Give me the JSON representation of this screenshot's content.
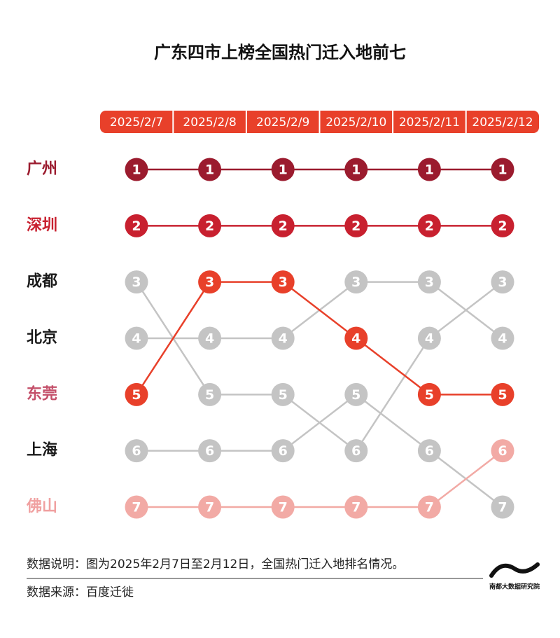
{
  "chart_data": {
    "type": "bump",
    "title": "广东四市上榜全国热门迁入地前七",
    "categories": [
      "2025/2/7",
      "2025/2/8",
      "2025/2/9",
      "2025/2/10",
      "2025/2/11",
      "2025/2/12"
    ],
    "header_color": "#e8402a",
    "ylim": [
      1,
      7
    ],
    "series": [
      {
        "name": "广州",
        "color": "#9b1b2e",
        "label_color": "#9b1b2e",
        "values": [
          1,
          1,
          1,
          1,
          1,
          1
        ]
      },
      {
        "name": "深圳",
        "color": "#c8202f",
        "label_color": "#c8202f",
        "values": [
          2,
          2,
          2,
          2,
          2,
          2
        ]
      },
      {
        "name": "成都",
        "color": "#c4c4c4",
        "label_color": "#1a1a1a",
        "values": [
          3,
          5,
          5,
          6,
          4,
          3
        ]
      },
      {
        "name": "北京",
        "color": "#c4c4c4",
        "label_color": "#1a1a1a",
        "values": [
          4,
          4,
          4,
          3,
          3,
          4
        ]
      },
      {
        "name": "东莞",
        "color": "#e8402a",
        "label_color": "#c4506a",
        "values": [
          5,
          3,
          3,
          4,
          5,
          5
        ]
      },
      {
        "name": "上海",
        "color": "#c4c4c4",
        "label_color": "#1a1a1a",
        "values": [
          6,
          6,
          6,
          5,
          6,
          7
        ]
      },
      {
        "name": "佛山",
        "color": "#f2aaa5",
        "label_color": "#f0a0a0",
        "values": [
          7,
          7,
          7,
          7,
          7,
          6
        ]
      }
    ],
    "note": "数据说明：图为2025年2月7日至2月12日，全国热门迁入地排名情况。",
    "source": "数据来源：百度迁徙",
    "logo": "南都大数据研究院"
  }
}
